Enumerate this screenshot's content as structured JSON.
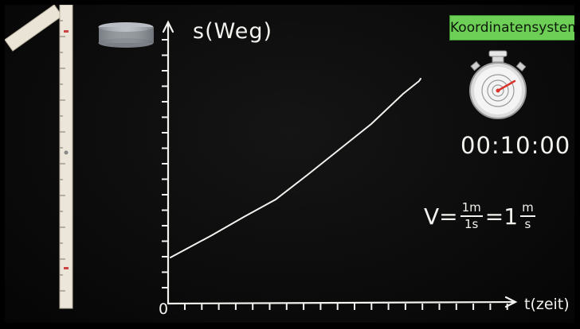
{
  "badge": "Koordinatensystem",
  "axes": {
    "y_label": "s(Weg)",
    "x_label": "t(zeit)",
    "origin": "0"
  },
  "stopwatch": {
    "display": "00:10:00"
  },
  "formula": {
    "lhs": "V=",
    "frac1_num": "1m",
    "frac1_den": "1s",
    "eq": "=1",
    "frac2_num": "m",
    "frac2_den": "s"
  },
  "colors": {
    "chalk": "#f2f2ee",
    "badge": "#6ecf57",
    "stopwatch_hand": "#d9342b"
  },
  "icons": [
    "folding-ruler-icon",
    "cylinder-icon",
    "stopwatch-icon"
  ]
}
